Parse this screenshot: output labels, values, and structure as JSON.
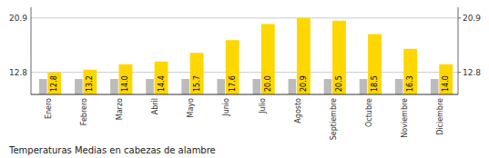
{
  "chart_data": {
    "type": "bar",
    "title": "Temperaturas Medias en cabezas de alambre",
    "categories": [
      "Enero",
      "Febrero",
      "Marzo",
      "Abril",
      "Mayo",
      "Junio",
      "Julio",
      "Agosto",
      "Septiembre",
      "Octubre",
      "Noviembre",
      "Diciembre"
    ],
    "series": [
      {
        "color": "#BBBBBB",
        "values": [
          11.8,
          11.8,
          11.8,
          11.8,
          11.8,
          11.8,
          11.8,
          11.8,
          11.8,
          11.8,
          11.8,
          11.8
        ]
      },
      {
        "color": "#FFD700",
        "values": [
          12.8,
          13.2,
          14.0,
          14.4,
          15.7,
          17.6,
          20.0,
          20.9,
          20.5,
          18.5,
          16.3,
          14.0
        ],
        "value_labels": [
          "12.8",
          "13.2",
          "14.0",
          "14.4",
          "15.7",
          "17.6",
          "20.0",
          "20.9",
          "20.5",
          "18.5",
          "16.3",
          "14.0"
        ],
        "data_labels": true
      }
    ],
    "ylim": [
      9.5,
      22.5
    ],
    "yticks": [
      12.8,
      20.9
    ],
    "y2lim": [
      9.5,
      22.5
    ],
    "y2ticks": [
      12.8,
      20.9
    ],
    "grid": true
  }
}
